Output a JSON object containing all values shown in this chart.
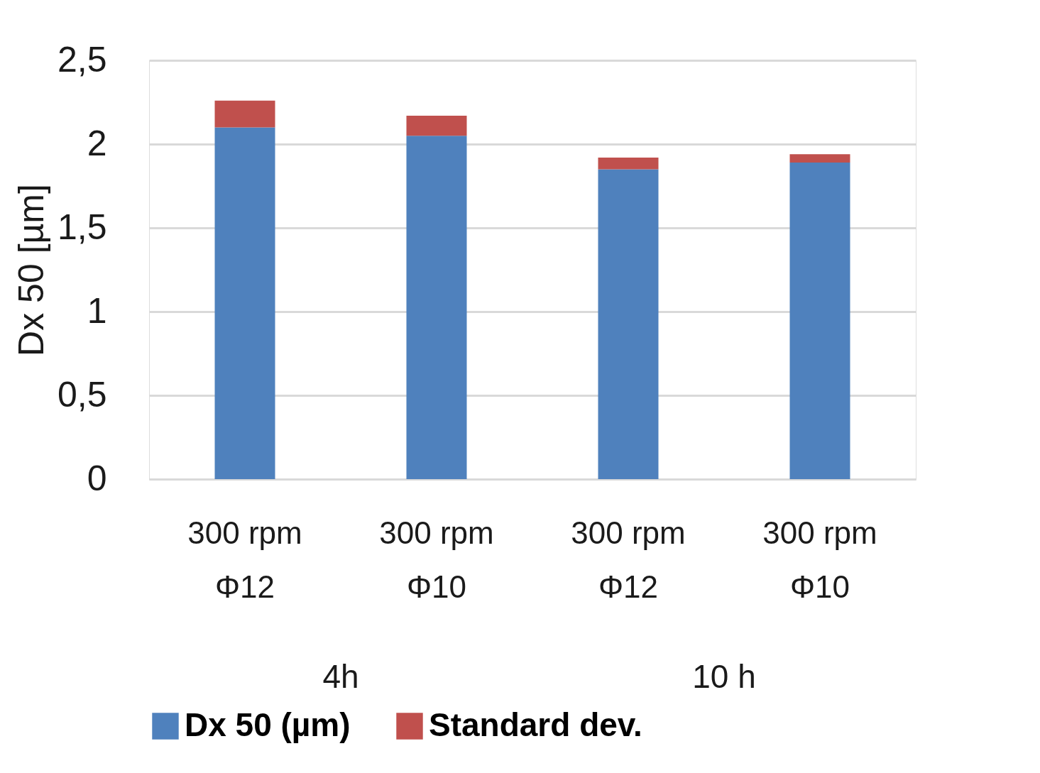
{
  "chart_data": {
    "type": "bar",
    "stacked": true,
    "ylabel": "Dx 50 [µm]",
    "categories": [
      "300 rpm\nΦ12",
      "300 rpm\nΦ10",
      "300 rpm\nΦ12",
      "300 rpm\nΦ10"
    ],
    "series": [
      {
        "name": "Dx 50 (µm)",
        "color": "#4f81bd",
        "values": [
          2.1,
          2.05,
          1.85,
          1.89
        ]
      },
      {
        "name": "Standard dev.",
        "color": "#c0504d",
        "values": [
          0.16,
          0.12,
          0.07,
          0.05
        ]
      }
    ],
    "ylim": [
      0,
      2.5
    ],
    "yticks": [
      0,
      {
        "value": 0.5,
        "label": "0,5"
      },
      1,
      {
        "value": 1.5,
        "label": "1,5"
      },
      2,
      {
        "value": 2.5,
        "label": "2,5"
      }
    ],
    "grid": "y",
    "legend": "bottom",
    "annotations": [
      "4h",
      "10 h"
    ]
  }
}
